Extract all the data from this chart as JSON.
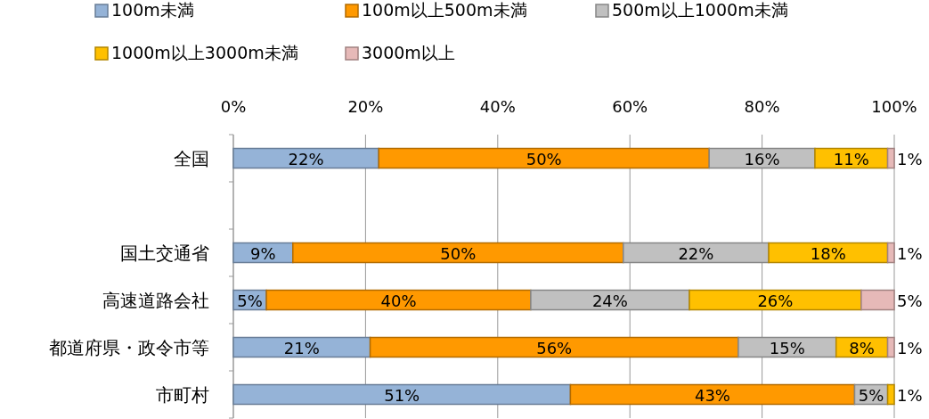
{
  "chart_data": {
    "type": "bar",
    "orientation": "horizontal",
    "stacked": true,
    "categories": [
      "全国",
      null,
      "国土交通省",
      "高速道路会社",
      "都道府県・政令市等",
      "市町村"
    ],
    "series": [
      {
        "name": "100m未満",
        "color": "#95b3d7",
        "values": [
          22,
          null,
          9,
          5,
          20.7,
          51
        ],
        "value_labels": [
          "22%",
          null,
          "9%",
          "5%",
          "21%",
          "51%"
        ]
      },
      {
        "name": "100m以上500m未満",
        "color": "#ff9900",
        "values": [
          50,
          null,
          50,
          40,
          55.7,
          43
        ],
        "value_labels": [
          "50%",
          null,
          "50%",
          "40%",
          "56%",
          "43%"
        ]
      },
      {
        "name": "500m以上1000m未満",
        "color": "#c0c0c0",
        "values": [
          16,
          null,
          22,
          24,
          14.8,
          5
        ],
        "value_labels": [
          "16%",
          null,
          "22%",
          "24%",
          "15%",
          "5%"
        ]
      },
      {
        "name": "1000m以上3000m未満",
        "color": "#ffc000",
        "values": [
          11,
          null,
          18,
          26,
          7.8,
          1
        ],
        "value_labels": [
          "11%",
          null,
          "18%",
          "26%",
          "8%",
          "1%"
        ]
      },
      {
        "name": "3000m以上",
        "color": "#e6b9b8",
        "values": [
          1,
          null,
          1,
          5,
          1,
          0
        ],
        "value_labels": [
          "1%",
          null,
          "1%",
          "5%",
          "1%",
          null
        ]
      }
    ],
    "xlim": [
      0,
      100
    ],
    "xticks": [
      {
        "value": 0,
        "label": "0%"
      },
      {
        "value": 20,
        "label": "20%"
      },
      {
        "value": 40,
        "label": "40%"
      },
      {
        "value": 60,
        "label": "60%"
      },
      {
        "value": 80,
        "label": "80%"
      },
      {
        "value": 100,
        "label": "100%"
      }
    ],
    "grid": "x",
    "legend": "top"
  }
}
